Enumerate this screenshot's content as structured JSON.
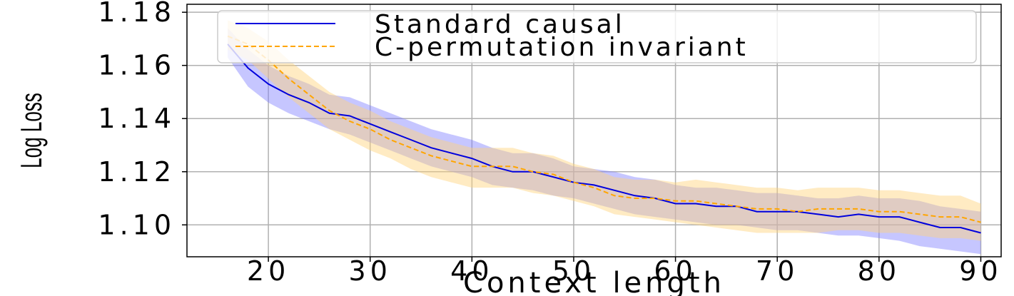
{
  "chart_data": {
    "type": "line",
    "title": "",
    "xlabel": "Context length",
    "ylabel": "Log Loss",
    "xlim": [
      12,
      92
    ],
    "ylim": [
      1.088,
      1.183
    ],
    "xticks": [
      20,
      30,
      40,
      50,
      60,
      70,
      80,
      90
    ],
    "xtick_labels": [
      "20",
      "30",
      "40",
      "50",
      "60",
      "70",
      "80",
      "90"
    ],
    "yticks": [
      1.1,
      1.12,
      1.14,
      1.16,
      1.18
    ],
    "ytick_labels": [
      "1.10",
      "1.12",
      "1.14",
      "1.16",
      "1.18"
    ],
    "grid": true,
    "legend_position": "top",
    "series": [
      {
        "name": "Standard causal",
        "color": "#0000dd",
        "style": "solid",
        "band_color": "#8080ff",
        "x": [
          16,
          18,
          20,
          22,
          24,
          26,
          28,
          30,
          32,
          34,
          36,
          38,
          40,
          42,
          44,
          46,
          48,
          50,
          52,
          54,
          56,
          58,
          60,
          62,
          64,
          66,
          68,
          70,
          72,
          74,
          76,
          78,
          80,
          82,
          84,
          86,
          88,
          90
        ],
        "y": [
          1.168,
          1.159,
          1.153,
          1.149,
          1.146,
          1.142,
          1.141,
          1.138,
          1.135,
          1.132,
          1.129,
          1.127,
          1.125,
          1.122,
          1.12,
          1.12,
          1.118,
          1.116,
          1.115,
          1.113,
          1.111,
          1.11,
          1.108,
          1.108,
          1.107,
          1.107,
          1.105,
          1.105,
          1.105,
          1.104,
          1.103,
          1.104,
          1.103,
          1.103,
          1.101,
          1.099,
          1.099,
          1.097
        ],
        "lower": [
          1.163,
          1.152,
          1.146,
          1.142,
          1.139,
          1.136,
          1.134,
          1.131,
          1.128,
          1.125,
          1.122,
          1.12,
          1.118,
          1.115,
          1.114,
          1.113,
          1.111,
          1.11,
          1.108,
          1.106,
          1.104,
          1.103,
          1.102,
          1.101,
          1.1,
          1.1,
          1.099,
          1.098,
          1.098,
          1.097,
          1.096,
          1.096,
          1.095,
          1.094,
          1.092,
          1.091,
          1.09,
          1.089
        ],
        "upper": [
          1.174,
          1.166,
          1.16,
          1.156,
          1.153,
          1.149,
          1.148,
          1.145,
          1.142,
          1.139,
          1.136,
          1.134,
          1.132,
          1.129,
          1.127,
          1.127,
          1.125,
          1.122,
          1.121,
          1.12,
          1.118,
          1.117,
          1.115,
          1.114,
          1.114,
          1.113,
          1.112,
          1.112,
          1.111,
          1.11,
          1.11,
          1.111,
          1.11,
          1.11,
          1.109,
          1.107,
          1.106,
          1.105
        ]
      },
      {
        "name": "C-permutation invariant",
        "color": "#ffa500",
        "style": "dashed",
        "band_color": "#ffd27a",
        "x": [
          16,
          18,
          20,
          22,
          24,
          26,
          28,
          30,
          32,
          34,
          36,
          38,
          40,
          42,
          44,
          46,
          48,
          50,
          52,
          54,
          56,
          58,
          60,
          62,
          64,
          66,
          68,
          70,
          72,
          74,
          76,
          78,
          80,
          82,
          84,
          86,
          88,
          90
        ],
        "y": [
          1.171,
          1.168,
          1.162,
          1.155,
          1.149,
          1.143,
          1.139,
          1.136,
          1.132,
          1.129,
          1.126,
          1.124,
          1.122,
          1.122,
          1.122,
          1.12,
          1.119,
          1.116,
          1.114,
          1.111,
          1.11,
          1.11,
          1.109,
          1.109,
          1.108,
          1.107,
          1.106,
          1.106,
          1.105,
          1.106,
          1.106,
          1.106,
          1.105,
          1.105,
          1.104,
          1.103,
          1.103,
          1.101
        ],
        "lower": [
          1.166,
          1.162,
          1.155,
          1.148,
          1.142,
          1.136,
          1.132,
          1.128,
          1.125,
          1.121,
          1.118,
          1.116,
          1.114,
          1.114,
          1.114,
          1.112,
          1.111,
          1.109,
          1.107,
          1.104,
          1.103,
          1.102,
          1.101,
          1.1,
          1.099,
          1.098,
          1.097,
          1.097,
          1.097,
          1.097,
          1.098,
          1.098,
          1.097,
          1.097,
          1.096,
          1.095,
          1.095,
          1.094
        ],
        "upper": [
          1.177,
          1.174,
          1.169,
          1.162,
          1.156,
          1.15,
          1.146,
          1.143,
          1.139,
          1.136,
          1.133,
          1.131,
          1.129,
          1.129,
          1.129,
          1.127,
          1.126,
          1.123,
          1.121,
          1.118,
          1.117,
          1.117,
          1.116,
          1.117,
          1.116,
          1.115,
          1.114,
          1.114,
          1.113,
          1.114,
          1.114,
          1.114,
          1.113,
          1.113,
          1.112,
          1.111,
          1.111,
          1.108
        ]
      }
    ]
  }
}
